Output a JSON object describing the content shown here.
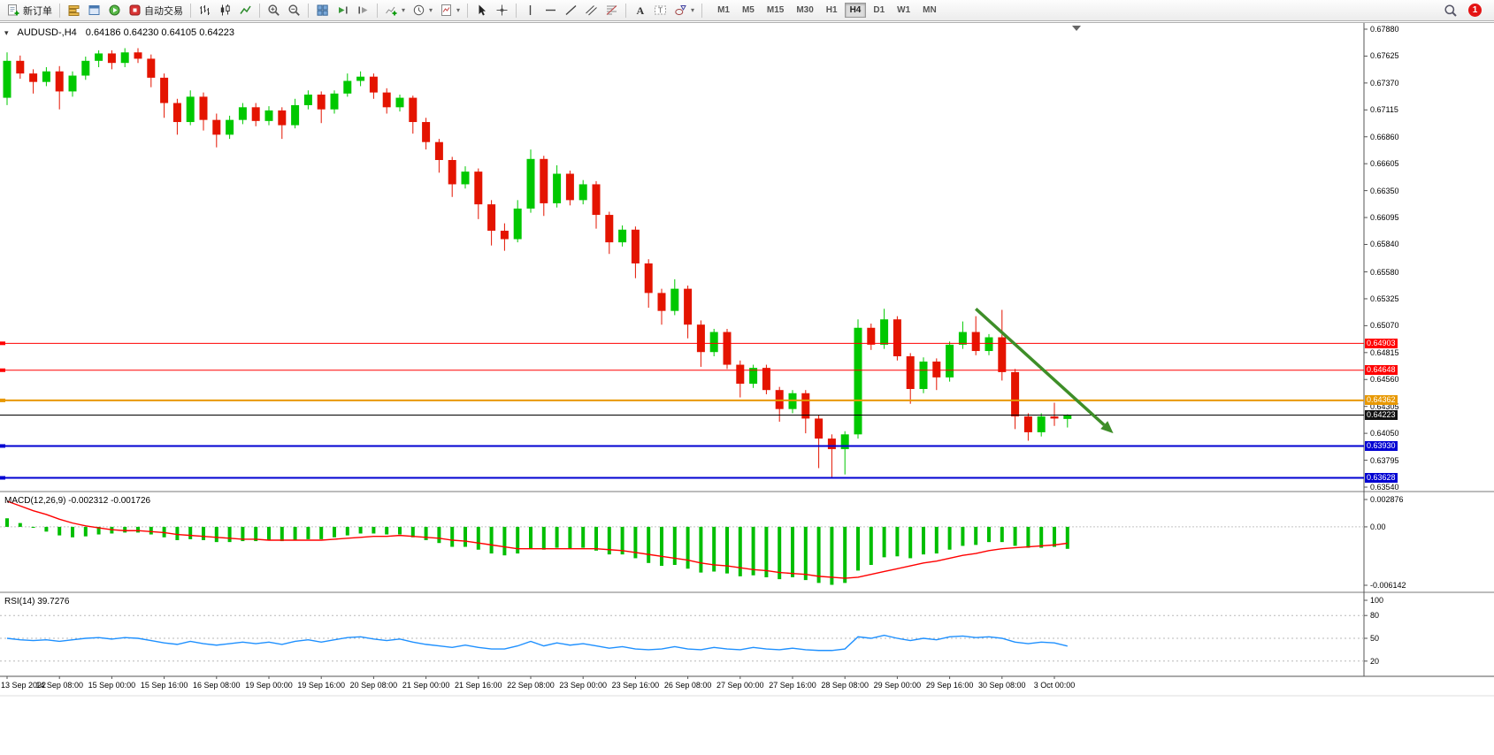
{
  "toolbar": {
    "new_order_label": "新订单",
    "auto_trading_label": "自动交易",
    "timeframes": [
      "M1",
      "M5",
      "M15",
      "M30",
      "H1",
      "H4",
      "D1",
      "W1",
      "MN"
    ],
    "active_timeframe": "H4",
    "notification_count": "1",
    "icons": [
      "new-order",
      "market-depth",
      "data-window",
      "strategy-tester",
      "auto-trading",
      "bar-chart",
      "candlestick-chart",
      "line-chart",
      "zoom-in",
      "zoom-out",
      "tile-windows",
      "auto-scroll",
      "chart-shift",
      "indicators",
      "periods",
      "templates",
      "cursor",
      "crosshair",
      "vertical-line",
      "horizontal-line",
      "trendline",
      "equidistant-channel",
      "fibonacci",
      "text",
      "text-label",
      "shapes",
      "search",
      "notifications"
    ]
  },
  "chart": {
    "symbol_period": "AUDUSD-,H4",
    "ohlc_text": "0.64186 0.64230 0.64105 0.64223"
  },
  "indicators": {
    "macd_title": "MACD(12,26,9) -0.002312 -0.001726",
    "rsi_title": "RSI(14) 39.7276"
  },
  "chart_data": {
    "type": "candlestick",
    "symbol": "AUDUSD",
    "period": "H4",
    "current_ohlc": {
      "open": 0.64186,
      "high": 0.6423,
      "low": 0.64105,
      "close": 0.64223
    },
    "y_axis": {
      "top_price": 0.6788,
      "bottom_price": 0.6354,
      "labels": [
        "0.67880",
        "0.67625",
        "0.67370",
        "0.67115",
        "0.66860",
        "0.66605",
        "0.66350",
        "0.66095",
        "0.65840",
        "0.65580",
        "0.65325",
        "0.65070",
        "0.64815",
        "0.64560",
        "0.64305",
        "0.64050",
        "0.63795",
        "0.63540"
      ]
    },
    "x_axis": {
      "labels": [
        "13 Sep 2022",
        "14 Sep 08:00",
        "15 Sep 00:00",
        "15 Sep 16:00",
        "16 Sep 08:00",
        "19 Sep 00:00",
        "19 Sep 16:00",
        "20 Sep 08:00",
        "21 Sep 00:00",
        "21 Sep 16:00",
        "22 Sep 08:00",
        "23 Sep 00:00",
        "23 Sep 16:00",
        "26 Sep 08:00",
        "27 Sep 00:00",
        "27 Sep 16:00",
        "28 Sep 08:00",
        "29 Sep 00:00",
        "29 Sep 16:00",
        "30 Sep 08:00",
        "3 Oct 00:00"
      ],
      "candle_indices": [
        0,
        4,
        8,
        12,
        16,
        20,
        24,
        28,
        32,
        36,
        40,
        44,
        48,
        52,
        56,
        60,
        64,
        68,
        72,
        76,
        80
      ]
    },
    "candles": [
      [
        0.6723,
        0.6766,
        0.6716,
        0.6758
      ],
      [
        0.6758,
        0.6763,
        0.6741,
        0.6746
      ],
      [
        0.6746,
        0.675,
        0.6727,
        0.6738
      ],
      [
        0.6738,
        0.6752,
        0.6734,
        0.6748
      ],
      [
        0.6748,
        0.6753,
        0.6712,
        0.6729
      ],
      [
        0.6729,
        0.6748,
        0.6724,
        0.6744
      ],
      [
        0.6744,
        0.6762,
        0.674,
        0.6758
      ],
      [
        0.6758,
        0.6768,
        0.6752,
        0.6765
      ],
      [
        0.6765,
        0.6768,
        0.675,
        0.6756
      ],
      [
        0.6756,
        0.677,
        0.6752,
        0.6766
      ],
      [
        0.6766,
        0.677,
        0.6756,
        0.676
      ],
      [
        0.676,
        0.6764,
        0.6733,
        0.6742
      ],
      [
        0.6742,
        0.6746,
        0.6704,
        0.6718
      ],
      [
        0.6718,
        0.6722,
        0.6688,
        0.67
      ],
      [
        0.67,
        0.673,
        0.6697,
        0.6724
      ],
      [
        0.6724,
        0.6728,
        0.6692,
        0.6702
      ],
      [
        0.6702,
        0.6708,
        0.6676,
        0.6688
      ],
      [
        0.6688,
        0.6706,
        0.6684,
        0.6702
      ],
      [
        0.6702,
        0.6718,
        0.6698,
        0.6714
      ],
      [
        0.6714,
        0.6718,
        0.6696,
        0.6701
      ],
      [
        0.6701,
        0.6715,
        0.6697,
        0.6711
      ],
      [
        0.6711,
        0.6714,
        0.6684,
        0.6697
      ],
      [
        0.6697,
        0.6722,
        0.6694,
        0.6716
      ],
      [
        0.6716,
        0.673,
        0.6712,
        0.6726
      ],
      [
        0.6726,
        0.6729,
        0.6699,
        0.6712
      ],
      [
        0.6712,
        0.673,
        0.6708,
        0.6727
      ],
      [
        0.6727,
        0.6746,
        0.6724,
        0.6739
      ],
      [
        0.6739,
        0.6748,
        0.6734,
        0.6743
      ],
      [
        0.6743,
        0.6746,
        0.6722,
        0.6728
      ],
      [
        0.6728,
        0.6732,
        0.6708,
        0.6714
      ],
      [
        0.6714,
        0.6726,
        0.671,
        0.6723
      ],
      [
        0.6723,
        0.6725,
        0.6689,
        0.67
      ],
      [
        0.67,
        0.6704,
        0.6674,
        0.6681
      ],
      [
        0.6681,
        0.6684,
        0.6652,
        0.6664
      ],
      [
        0.6664,
        0.6667,
        0.6629,
        0.6641
      ],
      [
        0.6641,
        0.6658,
        0.6637,
        0.6653
      ],
      [
        0.6653,
        0.6656,
        0.6608,
        0.6622
      ],
      [
        0.6622,
        0.6626,
        0.6583,
        0.6597
      ],
      [
        0.6597,
        0.6604,
        0.6578,
        0.6589
      ],
      [
        0.6589,
        0.6626,
        0.6586,
        0.6618
      ],
      [
        0.6618,
        0.6674,
        0.6614,
        0.6665
      ],
      [
        0.6665,
        0.6668,
        0.6611,
        0.6623
      ],
      [
        0.6623,
        0.6659,
        0.6619,
        0.6651
      ],
      [
        0.6651,
        0.6654,
        0.6621,
        0.6626
      ],
      [
        0.6626,
        0.6645,
        0.6622,
        0.6641
      ],
      [
        0.6641,
        0.6644,
        0.6599,
        0.6612
      ],
      [
        0.6612,
        0.6615,
        0.6575,
        0.6586
      ],
      [
        0.6586,
        0.6602,
        0.6582,
        0.6598
      ],
      [
        0.6598,
        0.6601,
        0.6552,
        0.6566
      ],
      [
        0.6566,
        0.657,
        0.6524,
        0.6538
      ],
      [
        0.6538,
        0.6542,
        0.6508,
        0.6521
      ],
      [
        0.6521,
        0.6551,
        0.6517,
        0.6542
      ],
      [
        0.6542,
        0.6545,
        0.6495,
        0.6508
      ],
      [
        0.6508,
        0.6512,
        0.6468,
        0.6482
      ],
      [
        0.6482,
        0.6504,
        0.6478,
        0.6501
      ],
      [
        0.6501,
        0.6504,
        0.6466,
        0.647
      ],
      [
        0.647,
        0.6474,
        0.6439,
        0.6452
      ],
      [
        0.6452,
        0.647,
        0.6448,
        0.6467
      ],
      [
        0.6467,
        0.647,
        0.6442,
        0.6446
      ],
      [
        0.6446,
        0.6449,
        0.6416,
        0.6428
      ],
      [
        0.6428,
        0.6446,
        0.6424,
        0.6443
      ],
      [
        0.6443,
        0.6446,
        0.6405,
        0.6419
      ],
      [
        0.6419,
        0.6422,
        0.6372,
        0.64
      ],
      [
        0.64,
        0.6404,
        0.6363,
        0.639
      ],
      [
        0.639,
        0.6407,
        0.6366,
        0.6404
      ],
      [
        0.6404,
        0.6513,
        0.64,
        0.6505
      ],
      [
        0.6505,
        0.6509,
        0.6484,
        0.6489
      ],
      [
        0.6489,
        0.6523,
        0.6485,
        0.6513
      ],
      [
        0.6513,
        0.6516,
        0.6474,
        0.6478
      ],
      [
        0.6478,
        0.6481,
        0.6433,
        0.6447
      ],
      [
        0.6447,
        0.6477,
        0.6443,
        0.6473
      ],
      [
        0.6473,
        0.6476,
        0.6446,
        0.6458
      ],
      [
        0.6458,
        0.6492,
        0.6454,
        0.6489
      ],
      [
        0.6489,
        0.6511,
        0.6485,
        0.6501
      ],
      [
        0.6501,
        0.6516,
        0.6479,
        0.6483
      ],
      [
        0.6483,
        0.6499,
        0.6479,
        0.6496
      ],
      [
        0.6496,
        0.6522,
        0.6455,
        0.6463
      ],
      [
        0.6463,
        0.6466,
        0.6409,
        0.6421
      ],
      [
        0.6421,
        0.6424,
        0.6398,
        0.6406
      ],
      [
        0.6406,
        0.6424,
        0.6402,
        0.6421
      ],
      [
        0.6421,
        0.6434,
        0.6412,
        0.6419
      ],
      [
        0.64186,
        0.6423,
        0.64105,
        0.64223
      ]
    ],
    "hlines": [
      {
        "price": 0.64903,
        "label": "0.64903",
        "color": "#FF0000",
        "width": 1
      },
      {
        "price": 0.64648,
        "label": "0.64648",
        "color": "#FF0000",
        "width": 1
      },
      {
        "price": 0.64362,
        "label": "0.64362",
        "color": "#E89800",
        "width": 2
      },
      {
        "price": 0.6393,
        "label": "0.63930",
        "color": "#0000D2",
        "width": 2
      },
      {
        "price": 0.63628,
        "label": "0.63628",
        "color": "#0000D2",
        "width": 2
      }
    ],
    "bid_line": {
      "price": 0.64223,
      "label": "0.64223",
      "color": "#000000"
    },
    "trend_arrow": {
      "from_index": 74,
      "from_price": 0.6523,
      "to_index": 84.5,
      "to_price": 0.6405,
      "color": "#3E8E28"
    },
    "colors": {
      "bull": "#00C800",
      "bear": "#E41400",
      "macd_histogram": "#00BE00",
      "macd_signal": "#FF0000",
      "rsi_line": "#1E90FF"
    },
    "macd": {
      "name": "MACD(12,26,9)",
      "main_value": -0.002312,
      "signal_value": -0.001726,
      "axis_top": 0.002876,
      "axis_bottom": -0.006142,
      "axis_labels": [
        "0.002876",
        "0.00",
        "-0.006142"
      ],
      "histogram": [
        0.0009,
        0.0004,
        -0.0001,
        -0.0005,
        -0.0009,
        -0.0011,
        -0.001,
        -0.0008,
        -0.0007,
        -0.0006,
        -0.0006,
        -0.0008,
        -0.0011,
        -0.0014,
        -0.0013,
        -0.0014,
        -0.0016,
        -0.0016,
        -0.0015,
        -0.0015,
        -0.0014,
        -0.0015,
        -0.0014,
        -0.0013,
        -0.0013,
        -0.0011,
        -0.0009,
        -0.0007,
        -0.0007,
        -0.0008,
        -0.0008,
        -0.0011,
        -0.0014,
        -0.0017,
        -0.0021,
        -0.0021,
        -0.0024,
        -0.0028,
        -0.003,
        -0.0028,
        -0.0023,
        -0.0024,
        -0.0022,
        -0.0023,
        -0.0022,
        -0.0025,
        -0.0029,
        -0.0029,
        -0.0033,
        -0.0038,
        -0.0041,
        -0.004,
        -0.0044,
        -0.0048,
        -0.0047,
        -0.0049,
        -0.0052,
        -0.0051,
        -0.0053,
        -0.0055,
        -0.0053,
        -0.0056,
        -0.0059,
        -0.0061,
        -0.0059,
        -0.0046,
        -0.004,
        -0.0032,
        -0.0031,
        -0.0033,
        -0.0029,
        -0.0028,
        -0.0024,
        -0.002,
        -0.0019,
        -0.0016,
        -0.0016,
        -0.002,
        -0.0022,
        -0.0022,
        -0.0021,
        -0.002312
      ],
      "signal": [
        0.0027,
        0.0022,
        0.0017,
        0.0013,
        0.0008,
        0.0004,
        0.0001,
        -0.0001,
        -0.0003,
        -0.0004,
        -0.0004,
        -0.0005,
        -0.0006,
        -0.0008,
        -0.0009,
        -0.001,
        -0.0011,
        -0.0012,
        -0.0013,
        -0.0013,
        -0.0014,
        -0.0014,
        -0.0014,
        -0.0014,
        -0.0014,
        -0.0013,
        -0.0012,
        -0.0011,
        -0.001,
        -0.001,
        -0.0009,
        -0.001,
        -0.0011,
        -0.0012,
        -0.0014,
        -0.0015,
        -0.0017,
        -0.0019,
        -0.0021,
        -0.0023,
        -0.0023,
        -0.0023,
        -0.0023,
        -0.0023,
        -0.0023,
        -0.0023,
        -0.0024,
        -0.0025,
        -0.0027,
        -0.0029,
        -0.0031,
        -0.0033,
        -0.0035,
        -0.0038,
        -0.004,
        -0.0041,
        -0.0043,
        -0.0045,
        -0.0046,
        -0.0048,
        -0.0049,
        -0.005,
        -0.0052,
        -0.0053,
        -0.0054,
        -0.0053,
        -0.005,
        -0.0047,
        -0.0044,
        -0.0041,
        -0.0038,
        -0.0036,
        -0.0033,
        -0.003,
        -0.0028,
        -0.0025,
        -0.0023,
        -0.0022,
        -0.0021,
        -0.002,
        -0.0019,
        -0.001726
      ]
    },
    "rsi": {
      "name": "RSI(14)",
      "value": 39.7276,
      "levels": [
        80,
        50,
        20
      ],
      "axis_labels": [
        "100",
        "80",
        "50",
        "20"
      ],
      "series": [
        50,
        48,
        47,
        48,
        46,
        48,
        50,
        51,
        49,
        51,
        50,
        47,
        44,
        42,
        46,
        43,
        41,
        43,
        45,
        43,
        45,
        42,
        46,
        48,
        45,
        48,
        51,
        52,
        49,
        47,
        49,
        45,
        42,
        40,
        38,
        41,
        38,
        36,
        36,
        40,
        46,
        40,
        44,
        41,
        43,
        40,
        37,
        39,
        36,
        35,
        36,
        39,
        36,
        35,
        38,
        36,
        35,
        38,
        36,
        35,
        37,
        35,
        34,
        34,
        36,
        52,
        50,
        54,
        50,
        47,
        50,
        48,
        52,
        53,
        51,
        52,
        50,
        45,
        43,
        45,
        44,
        39.73
      ]
    }
  }
}
